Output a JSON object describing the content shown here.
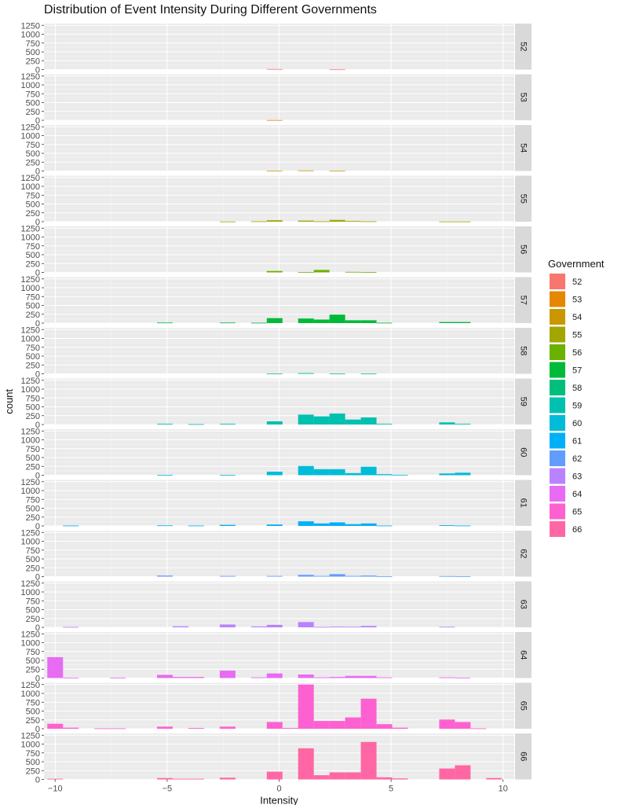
{
  "chart_data": {
    "type": "bar",
    "title": "Distribution of Event Intensity During Different Governments",
    "xlabel": "Intensity",
    "ylabel": "count",
    "xlim": [
      -10.5,
      10.5
    ],
    "ylim": [
      0,
      1300
    ],
    "x_ticks": [
      -10,
      -5,
      0,
      5,
      10
    ],
    "x_tick_labels": [
      "−10",
      "−5",
      "0",
      "5",
      "10"
    ],
    "y_ticks": [
      0,
      250,
      500,
      750,
      1000,
      1250
    ],
    "bin_width": 0.7,
    "grid": true,
    "facet_by": "Government",
    "legend": {
      "title": "Government",
      "placement": "right",
      "entries": [
        "52",
        "53",
        "54",
        "55",
        "56",
        "57",
        "58",
        "59",
        "60",
        "61",
        "62",
        "63",
        "64",
        "65",
        "66"
      ]
    },
    "colors": {
      "52": "#F8766D",
      "53": "#E58700",
      "54": "#C99800",
      "55": "#A3A500",
      "56": "#6BB100",
      "57": "#00BA38",
      "58": "#00BF7D",
      "59": "#00C0AF",
      "60": "#00BCD8",
      "61": "#00B0F6",
      "62": "#619CFF",
      "63": "#B983FF",
      "64": "#E76BF3",
      "65": "#FD61D1",
      "66": "#FF67A4"
    },
    "bin_centers": [
      -10,
      -9.3,
      -8.6,
      -7.9,
      -7.2,
      -6.5,
      -5.8,
      -5.1,
      -4.4,
      -3.7,
      -3.0,
      -2.3,
      -1.6,
      -0.9,
      -0.2,
      0.5,
      1.2,
      1.9,
      2.6,
      3.3,
      4.0,
      4.7,
      5.4,
      6.1,
      6.8,
      7.5,
      8.2,
      8.9,
      9.6
    ],
    "series": [
      {
        "name": "52",
        "values": [
          0,
          0,
          0,
          0,
          0,
          0,
          0,
          0,
          0,
          0,
          0,
          0,
          0,
          0,
          15,
          0,
          0,
          0,
          5,
          0,
          0,
          0,
          0,
          0,
          0,
          0,
          0,
          0,
          0
        ]
      },
      {
        "name": "53",
        "values": [
          0,
          0,
          0,
          0,
          0,
          0,
          0,
          0,
          0,
          0,
          0,
          0,
          0,
          0,
          5,
          0,
          0,
          0,
          0,
          0,
          0,
          0,
          0,
          0,
          0,
          0,
          0,
          0,
          0
        ]
      },
      {
        "name": "54",
        "values": [
          0,
          0,
          0,
          0,
          0,
          0,
          0,
          0,
          0,
          0,
          0,
          0,
          0,
          0,
          5,
          0,
          15,
          0,
          5,
          0,
          0,
          0,
          0,
          0,
          0,
          0,
          0,
          0,
          0
        ]
      },
      {
        "name": "55",
        "values": [
          0,
          0,
          0,
          0,
          0,
          0,
          0,
          0,
          0,
          0,
          0,
          5,
          0,
          10,
          40,
          0,
          30,
          10,
          50,
          20,
          10,
          0,
          0,
          0,
          0,
          5,
          5,
          0,
          0
        ]
      },
      {
        "name": "56",
        "values": [
          0,
          0,
          0,
          0,
          0,
          0,
          0,
          0,
          0,
          0,
          0,
          0,
          0,
          0,
          40,
          0,
          10,
          70,
          0,
          15,
          10,
          0,
          0,
          0,
          0,
          0,
          0,
          0,
          0
        ]
      },
      {
        "name": "57",
        "values": [
          0,
          0,
          0,
          0,
          0,
          0,
          0,
          15,
          0,
          0,
          0,
          15,
          0,
          10,
          140,
          0,
          130,
          100,
          240,
          80,
          80,
          10,
          0,
          0,
          0,
          30,
          30,
          0,
          0
        ]
      },
      {
        "name": "58",
        "values": [
          0,
          0,
          0,
          0,
          0,
          0,
          0,
          0,
          0,
          0,
          0,
          0,
          0,
          0,
          5,
          0,
          20,
          0,
          5,
          0,
          5,
          0,
          0,
          0,
          0,
          0,
          0,
          0,
          0
        ]
      },
      {
        "name": "59",
        "values": [
          0,
          0,
          0,
          0,
          0,
          0,
          0,
          20,
          0,
          10,
          0,
          20,
          0,
          0,
          90,
          0,
          280,
          230,
          310,
          140,
          200,
          20,
          0,
          0,
          0,
          60,
          20,
          0,
          0
        ]
      },
      {
        "name": "60",
        "values": [
          0,
          0,
          0,
          0,
          0,
          0,
          0,
          10,
          0,
          0,
          0,
          10,
          0,
          0,
          100,
          0,
          260,
          170,
          170,
          60,
          240,
          30,
          10,
          0,
          0,
          50,
          70,
          0,
          0
        ]
      },
      {
        "name": "61",
        "values": [
          0,
          10,
          0,
          0,
          0,
          0,
          0,
          15,
          0,
          10,
          0,
          30,
          0,
          0,
          40,
          0,
          130,
          70,
          100,
          50,
          70,
          10,
          0,
          0,
          0,
          20,
          10,
          0,
          0
        ]
      },
      {
        "name": "62",
        "values": [
          0,
          0,
          0,
          0,
          0,
          0,
          0,
          30,
          0,
          0,
          0,
          20,
          0,
          0,
          20,
          0,
          50,
          20,
          70,
          20,
          30,
          10,
          0,
          0,
          0,
          15,
          10,
          0,
          0
        ]
      },
      {
        "name": "63",
        "values": [
          0,
          10,
          0,
          0,
          0,
          0,
          0,
          0,
          30,
          0,
          0,
          80,
          0,
          25,
          70,
          0,
          150,
          10,
          20,
          15,
          40,
          0,
          0,
          0,
          0,
          15,
          0,
          0,
          0
        ]
      },
      {
        "name": "64",
        "values": [
          590,
          10,
          0,
          0,
          10,
          0,
          0,
          90,
          30,
          30,
          0,
          210,
          0,
          20,
          130,
          0,
          100,
          20,
          30,
          60,
          60,
          20,
          0,
          0,
          0,
          20,
          10,
          0,
          0
        ]
      },
      {
        "name": "65",
        "values": [
          140,
          30,
          0,
          10,
          10,
          0,
          0,
          60,
          0,
          20,
          0,
          60,
          0,
          0,
          190,
          20,
          1250,
          220,
          220,
          320,
          850,
          130,
          30,
          0,
          0,
          260,
          190,
          10,
          0
        ]
      },
      {
        "name": "66",
        "values": [
          20,
          0,
          0,
          0,
          0,
          0,
          0,
          40,
          20,
          20,
          0,
          50,
          0,
          0,
          220,
          0,
          880,
          120,
          200,
          200,
          1060,
          60,
          30,
          0,
          0,
          310,
          400,
          0,
          40
        ]
      }
    ]
  }
}
